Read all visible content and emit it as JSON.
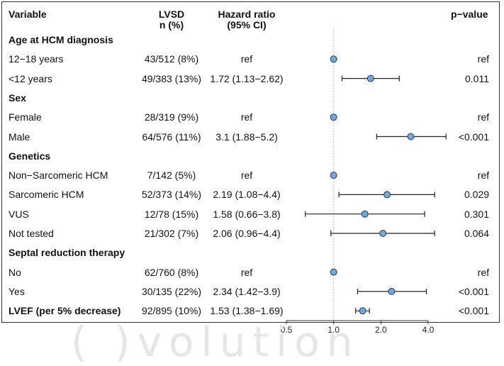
{
  "headers": {
    "variable": "Variable",
    "lvsd_line1": "LVSD",
    "lvsd_line2": "n (%)",
    "hr_line1": "Hazard ratio",
    "hr_line2": "(95% CI)",
    "pvalue": "p−value"
  },
  "rows": [
    {
      "label": "Age at HCM diagnosis",
      "section": true
    },
    {
      "label": "12−18 years",
      "lvsd": "43/512 (8%)",
      "hr": "ref",
      "p": "ref"
    },
    {
      "label": "<12 years",
      "lvsd": "49/383 (13%)",
      "hr": "1.72 (1.13−2.62)",
      "p": "0.011"
    },
    {
      "label": "Sex",
      "section": true
    },
    {
      "label": "Female",
      "lvsd": "28/319 (9%)",
      "hr": "ref",
      "p": "ref"
    },
    {
      "label": "Male",
      "lvsd": "64/576 (11%)",
      "hr": "3.1 (1.88−5.2)",
      "p": "<0.001"
    },
    {
      "label": "Genetics",
      "section": true
    },
    {
      "label": "Non−Sarcomeric HCM",
      "lvsd": "7/142 (5%)",
      "hr": "ref",
      "p": "ref"
    },
    {
      "label": "Sarcomeric HCM",
      "lvsd": "52/373 (14%)",
      "hr": "2.19 (1.08−4.4)",
      "p": "0.029"
    },
    {
      "label": "VUS",
      "lvsd": "12/78 (15%)",
      "hr": "1.58 (0.66−3.8)",
      "p": "0.301"
    },
    {
      "label": "Not tested",
      "lvsd": "21/302 (7%)",
      "hr": "2.06 (0.96−4.4)",
      "p": "0.064"
    },
    {
      "label": "Septal reduction therapy",
      "section": true
    },
    {
      "label": "No",
      "lvsd": "62/760 (8%)",
      "hr": "ref",
      "p": "ref"
    },
    {
      "label": "Yes",
      "lvsd": "30/135 (22%)",
      "hr": "2.34 (1.42−3.9)",
      "p": "<0.001"
    },
    {
      "label": "LVEF (per 5% decrease)",
      "bold": true,
      "lvsd": "92/895 (10%)",
      "hr": "1.53 (1.38−1.69)",
      "p": "<0.001"
    }
  ],
  "chart_data": {
    "type": "scatter",
    "subtype": "forest",
    "scale": "log",
    "xlim": [
      0.5,
      4.0
    ],
    "xticks": [
      "0.5",
      "1.0",
      "2.0",
      "4.0"
    ],
    "reference_line": 1.0,
    "points": [
      {
        "row": 1,
        "est": 1.0
      },
      {
        "row": 2,
        "est": 1.72,
        "lo": 1.13,
        "hi": 2.62
      },
      {
        "row": 4,
        "est": 1.0
      },
      {
        "row": 5,
        "est": 3.1,
        "lo": 1.88,
        "hi": 5.2
      },
      {
        "row": 7,
        "est": 1.0
      },
      {
        "row": 8,
        "est": 2.19,
        "lo": 1.08,
        "hi": 4.4
      },
      {
        "row": 9,
        "est": 1.58,
        "lo": 0.66,
        "hi": 3.8
      },
      {
        "row": 10,
        "est": 2.06,
        "lo": 0.96,
        "hi": 4.4
      },
      {
        "row": 12,
        "est": 1.0
      },
      {
        "row": 13,
        "est": 2.34,
        "lo": 1.42,
        "hi": 3.9
      },
      {
        "row": 14,
        "est": 1.53,
        "lo": 1.38,
        "hi": 1.69
      }
    ],
    "colors": {
      "marker": "#6fa8dc",
      "ref_line": "#e8a0a0",
      "axis": "#333333"
    }
  },
  "watermark": "( )volution"
}
